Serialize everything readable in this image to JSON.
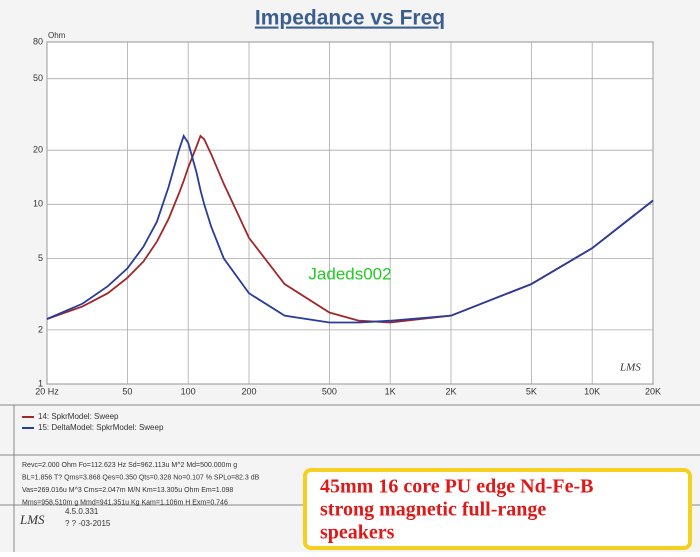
{
  "chart_data": {
    "type": "line",
    "title": "Impedance vs Freq",
    "y_label": "Ohm",
    "log_x": true,
    "log_y": true,
    "grid": true,
    "xlim": [
      20,
      20000
    ],
    "ylim": [
      1,
      80
    ],
    "xticks": [
      {
        "value": 20,
        "label": "20 Hz"
      },
      50,
      100,
      200,
      500,
      {
        "value": 1000,
        "label": "1K"
      },
      {
        "value": 2000,
        "label": "2K"
      },
      {
        "value": 5000,
        "label": "5K"
      },
      {
        "value": 10000,
        "label": "10K"
      },
      {
        "value": 20000,
        "label": "20K"
      }
    ],
    "yticks": [
      1,
      2,
      5,
      10,
      20,
      50,
      80
    ],
    "x": [
      20,
      30,
      40,
      50,
      60,
      70,
      80,
      90,
      95,
      100,
      110,
      115,
      120,
      130,
      150,
      200,
      300,
      500,
      700,
      1000,
      2000,
      5000,
      10000,
      20000
    ],
    "series": [
      {
        "name": "14: SpkrModel: Sweep",
        "color": "#a0282a",
        "values": [
          2.3,
          2.7,
          3.2,
          3.9,
          4.8,
          6.2,
          8.3,
          11.5,
          13.5,
          16,
          21,
          24,
          23,
          19,
          13,
          6.5,
          3.6,
          2.5,
          2.25,
          2.2,
          2.4,
          3.6,
          5.7,
          10.5
        ]
      },
      {
        "name": "15: DeltaModel: SpkrModel: Sweep",
        "color": "#283c9c",
        "values": [
          2.3,
          2.8,
          3.5,
          4.4,
          5.8,
          8,
          12.5,
          20,
          24,
          22,
          15,
          12,
          10,
          7.5,
          5,
          3.2,
          2.4,
          2.2,
          2.2,
          2.25,
          2.4,
          3.6,
          5.7,
          10.5
        ]
      }
    ],
    "watermark": "Jadeds002",
    "logo": "LMS",
    "parameters": [
      "Revc=2.000 Ohm  Fo=112.623 Hz  Sd=962.113u M^2 Md=500.000m g",
      "BL=1.856 T?  Qms=3.868  Qes=0.350  Qts=0.328  No=0.107 %  SPLo=82.3 dB",
      "Vas=269.016u M^3 Cms=2.047m M/N  Km=13.305u Ohm  Em=1.098",
      "Mms=958.510m g  Mmd=941.351u Kg  Kam=1.106m H  Exm=0.746"
    ],
    "footer": [
      "LMS",
      "4.5.0.331",
      "? ? -03-2015"
    ],
    "caption": [
      "45mm 16 core PU edge Nd-Fe-B",
      "strong magnetic full-range",
      "speakers"
    ]
  }
}
